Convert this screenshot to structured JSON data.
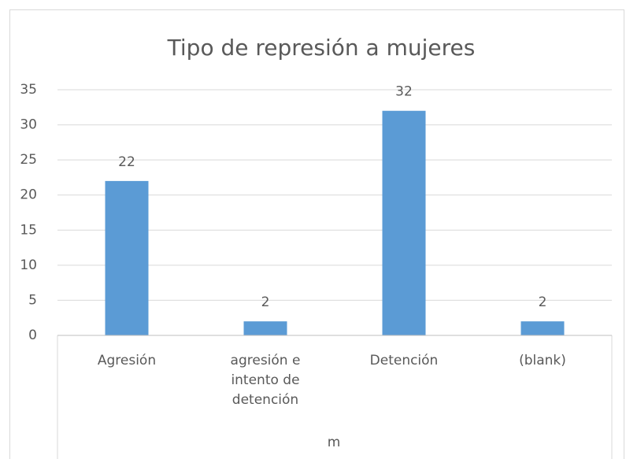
{
  "chart_data": {
    "type": "bar",
    "title": "Tipo de represión a mujeres",
    "categories": [
      "Agresión",
      "agresión e intento de detención",
      "Detención",
      "(blank)"
    ],
    "values": [
      22,
      2,
      32,
      2
    ],
    "color": "#5b9bd5",
    "ylim": [
      0,
      35
    ],
    "yticks": [
      0,
      5,
      10,
      15,
      20,
      25,
      30,
      35
    ],
    "grid": true,
    "x_label": "m"
  }
}
